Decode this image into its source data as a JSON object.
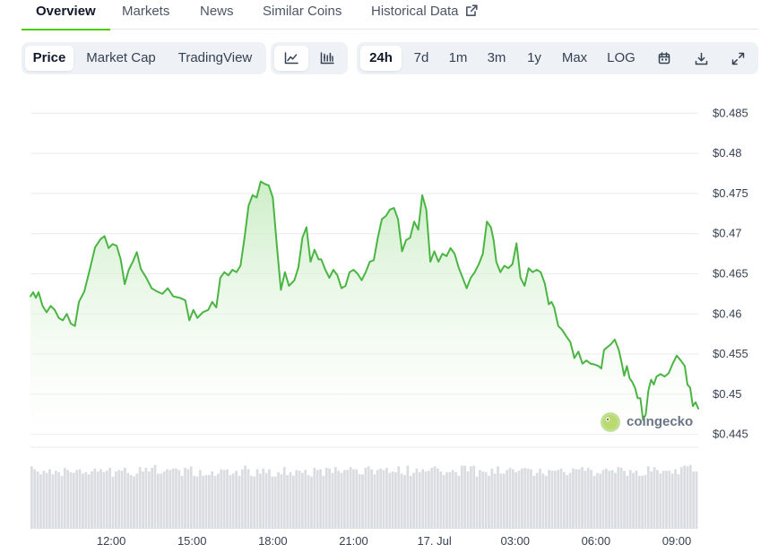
{
  "tabs": [
    {
      "label": "Overview",
      "active": true
    },
    {
      "label": "Markets",
      "active": false
    },
    {
      "label": "News",
      "active": false
    },
    {
      "label": "Similar Coins",
      "active": false
    },
    {
      "label": "Historical Data",
      "active": false,
      "icon": "external-link-icon"
    }
  ],
  "toolbar": {
    "chart_kind": [
      {
        "label": "Price",
        "active": true
      },
      {
        "label": "Market Cap",
        "active": false
      },
      {
        "label": "TradingView",
        "active": false
      }
    ],
    "chart_style": [
      {
        "icon": "line-chart-icon",
        "active": true
      },
      {
        "icon": "candlestick-chart-icon",
        "active": false
      }
    ],
    "ranges": [
      {
        "label": "24h",
        "active": true
      },
      {
        "label": "7d",
        "active": false
      },
      {
        "label": "1m",
        "active": false
      },
      {
        "label": "3m",
        "active": false
      },
      {
        "label": "1y",
        "active": false
      },
      {
        "label": "Max",
        "active": false
      },
      {
        "label": "LOG",
        "active": false
      }
    ],
    "actions": [
      "calendar-icon",
      "download-icon",
      "expand-icon"
    ]
  },
  "watermark": {
    "text": "coingecko",
    "icon": "coingecko-logo-icon"
  },
  "colors": {
    "line": "#4bb543",
    "area_top": "#c7ecc1",
    "volume": "#d9dce1",
    "accent": "#4bcc00",
    "grid": "#e8eaed"
  },
  "chart_data": {
    "type": "area",
    "title": "",
    "xlabel": "",
    "ylabel": "",
    "ylim": [
      0.4435,
      0.4875
    ],
    "grid": true,
    "y_ticks": [
      0.485,
      0.48,
      0.475,
      0.47,
      0.465,
      0.46,
      0.455,
      0.45,
      0.445
    ],
    "y_tick_labels": [
      "$0.485",
      "$0.48",
      "$0.475",
      "$0.47",
      "$0.465",
      "$0.46",
      "$0.455",
      "$0.45",
      "$0.445"
    ],
    "x_ticks": [
      "12:00",
      "15:00",
      "18:00",
      "21:00",
      "17. Jul",
      "03:00",
      "06:00",
      "09:00"
    ],
    "x_tick_hours": [
      12,
      15,
      18,
      21,
      24,
      27,
      30,
      33
    ],
    "x_range_hours": [
      9.0,
      33.8
    ],
    "series": [
      {
        "values": [
          [
            9.0,
            0.4622
          ],
          [
            9.1,
            0.4627
          ],
          [
            9.2,
            0.462
          ],
          [
            9.3,
            0.4627
          ],
          [
            9.45,
            0.461
          ],
          [
            9.6,
            0.4602
          ],
          [
            9.75,
            0.461
          ],
          [
            9.9,
            0.4605
          ],
          [
            10.05,
            0.4595
          ],
          [
            10.2,
            0.4592
          ],
          [
            10.35,
            0.46
          ],
          [
            10.5,
            0.4588
          ],
          [
            10.65,
            0.4585
          ],
          [
            10.8,
            0.4615
          ],
          [
            11.0,
            0.4628
          ],
          [
            11.2,
            0.4655
          ],
          [
            11.4,
            0.4683
          ],
          [
            11.6,
            0.4693
          ],
          [
            11.75,
            0.4697
          ],
          [
            11.9,
            0.4682
          ],
          [
            12.05,
            0.4687
          ],
          [
            12.2,
            0.4685
          ],
          [
            12.35,
            0.4668
          ],
          [
            12.5,
            0.4637
          ],
          [
            12.65,
            0.4655
          ],
          [
            12.8,
            0.4665
          ],
          [
            12.95,
            0.4677
          ],
          [
            13.1,
            0.4656
          ],
          [
            13.3,
            0.4645
          ],
          [
            13.5,
            0.4632
          ],
          [
            13.7,
            0.4628
          ],
          [
            13.9,
            0.4625
          ],
          [
            14.1,
            0.4632
          ],
          [
            14.3,
            0.4622
          ],
          [
            14.55,
            0.462
          ],
          [
            14.75,
            0.4617
          ],
          [
            14.9,
            0.4592
          ],
          [
            15.05,
            0.4605
          ],
          [
            15.2,
            0.4595
          ],
          [
            15.4,
            0.4602
          ],
          [
            15.6,
            0.4605
          ],
          [
            15.75,
            0.4615
          ],
          [
            15.9,
            0.4608
          ],
          [
            16.05,
            0.4645
          ],
          [
            16.2,
            0.4652
          ],
          [
            16.35,
            0.4648
          ],
          [
            16.5,
            0.4655
          ],
          [
            16.65,
            0.4652
          ],
          [
            16.8,
            0.466
          ],
          [
            16.95,
            0.4695
          ],
          [
            17.1,
            0.4735
          ],
          [
            17.25,
            0.4748
          ],
          [
            17.4,
            0.4745
          ],
          [
            17.55,
            0.4765
          ],
          [
            17.7,
            0.4762
          ],
          [
            17.85,
            0.476
          ],
          [
            18.0,
            0.4745
          ],
          [
            18.15,
            0.4685
          ],
          [
            18.3,
            0.463
          ],
          [
            18.45,
            0.4652
          ],
          [
            18.6,
            0.4635
          ],
          [
            18.8,
            0.4642
          ],
          [
            18.95,
            0.4658
          ],
          [
            19.1,
            0.4695
          ],
          [
            19.25,
            0.4708
          ],
          [
            19.4,
            0.4665
          ],
          [
            19.55,
            0.468
          ],
          [
            19.7,
            0.4668
          ],
          [
            19.8,
            0.4668
          ],
          [
            19.95,
            0.4655
          ],
          [
            20.1,
            0.4645
          ],
          [
            20.25,
            0.4655
          ],
          [
            20.4,
            0.4648
          ],
          [
            20.55,
            0.4632
          ],
          [
            20.7,
            0.4635
          ],
          [
            20.85,
            0.4652
          ],
          [
            21.0,
            0.4655
          ],
          [
            21.15,
            0.465
          ],
          [
            21.3,
            0.4642
          ],
          [
            21.45,
            0.4652
          ],
          [
            21.6,
            0.4665
          ],
          [
            21.75,
            0.4667
          ],
          [
            21.9,
            0.4695
          ],
          [
            22.05,
            0.4718
          ],
          [
            22.2,
            0.4722
          ],
          [
            22.35,
            0.473
          ],
          [
            22.5,
            0.4732
          ],
          [
            22.65,
            0.4718
          ],
          [
            22.8,
            0.4678
          ],
          [
            22.95,
            0.4692
          ],
          [
            23.1,
            0.4695
          ],
          [
            23.25,
            0.4715
          ],
          [
            23.4,
            0.4705
          ],
          [
            23.55,
            0.4748
          ],
          [
            23.7,
            0.473
          ],
          [
            23.85,
            0.4665
          ],
          [
            24.0,
            0.4678
          ],
          [
            24.15,
            0.4665
          ],
          [
            24.3,
            0.4675
          ],
          [
            24.45,
            0.4672
          ],
          [
            24.6,
            0.4682
          ],
          [
            24.75,
            0.4675
          ],
          [
            24.9,
            0.4658
          ],
          [
            25.05,
            0.4645
          ],
          [
            25.2,
            0.4632
          ],
          [
            25.35,
            0.4645
          ],
          [
            25.5,
            0.4652
          ],
          [
            25.65,
            0.4662
          ],
          [
            25.8,
            0.4675
          ],
          [
            25.95,
            0.4715
          ],
          [
            26.1,
            0.4708
          ],
          [
            26.2,
            0.4692
          ],
          [
            26.3,
            0.4665
          ],
          [
            26.45,
            0.4652
          ],
          [
            26.6,
            0.466
          ],
          [
            26.75,
            0.4657
          ],
          [
            26.9,
            0.4662
          ],
          [
            27.05,
            0.4688
          ],
          [
            27.2,
            0.4645
          ],
          [
            27.35,
            0.4635
          ],
          [
            27.5,
            0.4657
          ],
          [
            27.65,
            0.4652
          ],
          [
            27.8,
            0.4655
          ],
          [
            27.95,
            0.4652
          ],
          [
            28.1,
            0.4638
          ],
          [
            28.25,
            0.4612
          ],
          [
            28.35,
            0.4615
          ],
          [
            28.45,
            0.4608
          ],
          [
            28.6,
            0.4585
          ],
          [
            28.75,
            0.458
          ],
          [
            28.9,
            0.4572
          ],
          [
            29.05,
            0.4565
          ],
          [
            29.2,
            0.4545
          ],
          [
            29.35,
            0.4553
          ],
          [
            29.5,
            0.4538
          ],
          [
            29.65,
            0.4542
          ],
          [
            29.8,
            0.4538
          ],
          [
            29.95,
            0.4537
          ],
          [
            30.1,
            0.4535
          ],
          [
            30.2,
            0.4532
          ],
          [
            30.3,
            0.4555
          ],
          [
            30.4,
            0.4558
          ],
          [
            30.55,
            0.4562
          ],
          [
            30.7,
            0.4568
          ],
          [
            30.85,
            0.4555
          ],
          [
            30.95,
            0.454
          ],
          [
            31.05,
            0.4523
          ],
          [
            31.15,
            0.4535
          ],
          [
            31.25,
            0.452
          ],
          [
            31.35,
            0.4515
          ],
          [
            31.45,
            0.4508
          ],
          [
            31.55,
            0.4495
          ],
          [
            31.65,
            0.4495
          ],
          [
            31.75,
            0.4468
          ],
          [
            31.85,
            0.4475
          ],
          [
            31.95,
            0.4505
          ],
          [
            32.05,
            0.4518
          ],
          [
            32.15,
            0.4512
          ],
          [
            32.25,
            0.4522
          ],
          [
            32.4,
            0.4525
          ],
          [
            32.55,
            0.4522
          ],
          [
            32.7,
            0.4526
          ],
          [
            32.85,
            0.4538
          ],
          [
            33.0,
            0.4548
          ],
          [
            33.15,
            0.4542
          ],
          [
            33.3,
            0.4535
          ],
          [
            33.4,
            0.4512
          ],
          [
            33.5,
            0.4508
          ],
          [
            33.6,
            0.4485
          ],
          [
            33.7,
            0.449
          ],
          [
            33.8,
            0.4482
          ]
        ]
      }
    ],
    "volume": {
      "range": [
        0,
        1
      ],
      "values": [
        0.86,
        0.82,
        0.79,
        0.75,
        0.8,
        0.77,
        0.82,
        0.75,
        0.8,
        0.78,
        0.73,
        0.84,
        0.81,
        0.78,
        0.77,
        0.81,
        0.82,
        0.76,
        0.78,
        0.75,
        0.79,
        0.83,
        0.79,
        0.82,
        0.78,
        0.8,
        0.84,
        0.72,
        0.79,
        0.81,
        0.8,
        0.84,
        0.77,
        0.74,
        0.72,
        0.76,
        0.85,
        0.79,
        0.84,
        0.79,
        0.84,
        0.88,
        0.76,
        0.76,
        0.79,
        0.82,
        0.81,
        0.83,
        0.83,
        0.81,
        0.73,
        0.84,
        0.82,
        0.86,
        0.73,
        0.72,
        0.81,
        0.73,
        0.74,
        0.74,
        0.79,
        0.73,
        0.76,
        0.82,
        0.81,
        0.82,
        0.74,
        0.76,
        0.8,
        0.73,
        0.82,
        0.87,
        0.82,
        0.73,
        0.72,
        0.82,
        0.76,
        0.83,
        0.77,
        0.82,
        0.72,
        0.72,
        0.78,
        0.75,
        0.85,
        0.74,
        0.78,
        0.73,
        0.81,
        0.8,
        0.77,
        0.81,
        0.74,
        0.72,
        0.84,
        0.81,
        0.82,
        0.73,
        0.84,
        0.83,
        0.77,
        0.85,
        0.8,
        0.77,
        0.81,
        0.81,
        0.85,
        0.82,
        0.82,
        0.75,
        0.75,
        0.84,
        0.86,
        0.82,
        0.75,
        0.81,
        0.83,
        0.81,
        0.84,
        0.77,
        0.79,
        0.78,
        0.86,
        0.76,
        0.74,
        0.87,
        0.73,
        0.77,
        0.83,
        0.78,
        0.82,
        0.79,
        0.8,
        0.84,
        0.86,
        0.83,
        0.79,
        0.74,
        0.78,
        0.78,
        0.81,
        0.78,
        0.73,
        0.87,
        0.87,
        0.79,
        0.86,
        0.87,
        0.72,
        0.81,
        0.79,
        0.78,
        0.73,
        0.83,
        0.76,
        0.86,
        0.76,
        0.76,
        0.81,
        0.84,
        0.82,
        0.78,
        0.8,
        0.83,
        0.84,
        0.83,
        0.82,
        0.73,
        0.77,
        0.83,
        0.76,
        0.73,
        0.81,
        0.8,
        0.8,
        0.81,
        0.83,
        0.78,
        0.74,
        0.77,
        0.83,
        0.82,
        0.82,
        0.85,
        0.8,
        0.84,
        0.81,
        0.73,
        0.77,
        0.76,
        0.81,
        0.83,
        0.8,
        0.81,
        0.77,
        0.85,
        0.84,
        0.8,
        0.73,
        0.81,
        0.77,
        0.8,
        0.73,
        0.73,
        0.74,
        0.86,
        0.79,
        0.85,
        0.81,
        0.76,
        0.8,
        0.8,
        0.8,
        0.76,
        0.82,
        0.75,
        0.85,
        0.87,
        0.86,
        0.88,
        0.79,
        0.79
      ]
    }
  }
}
